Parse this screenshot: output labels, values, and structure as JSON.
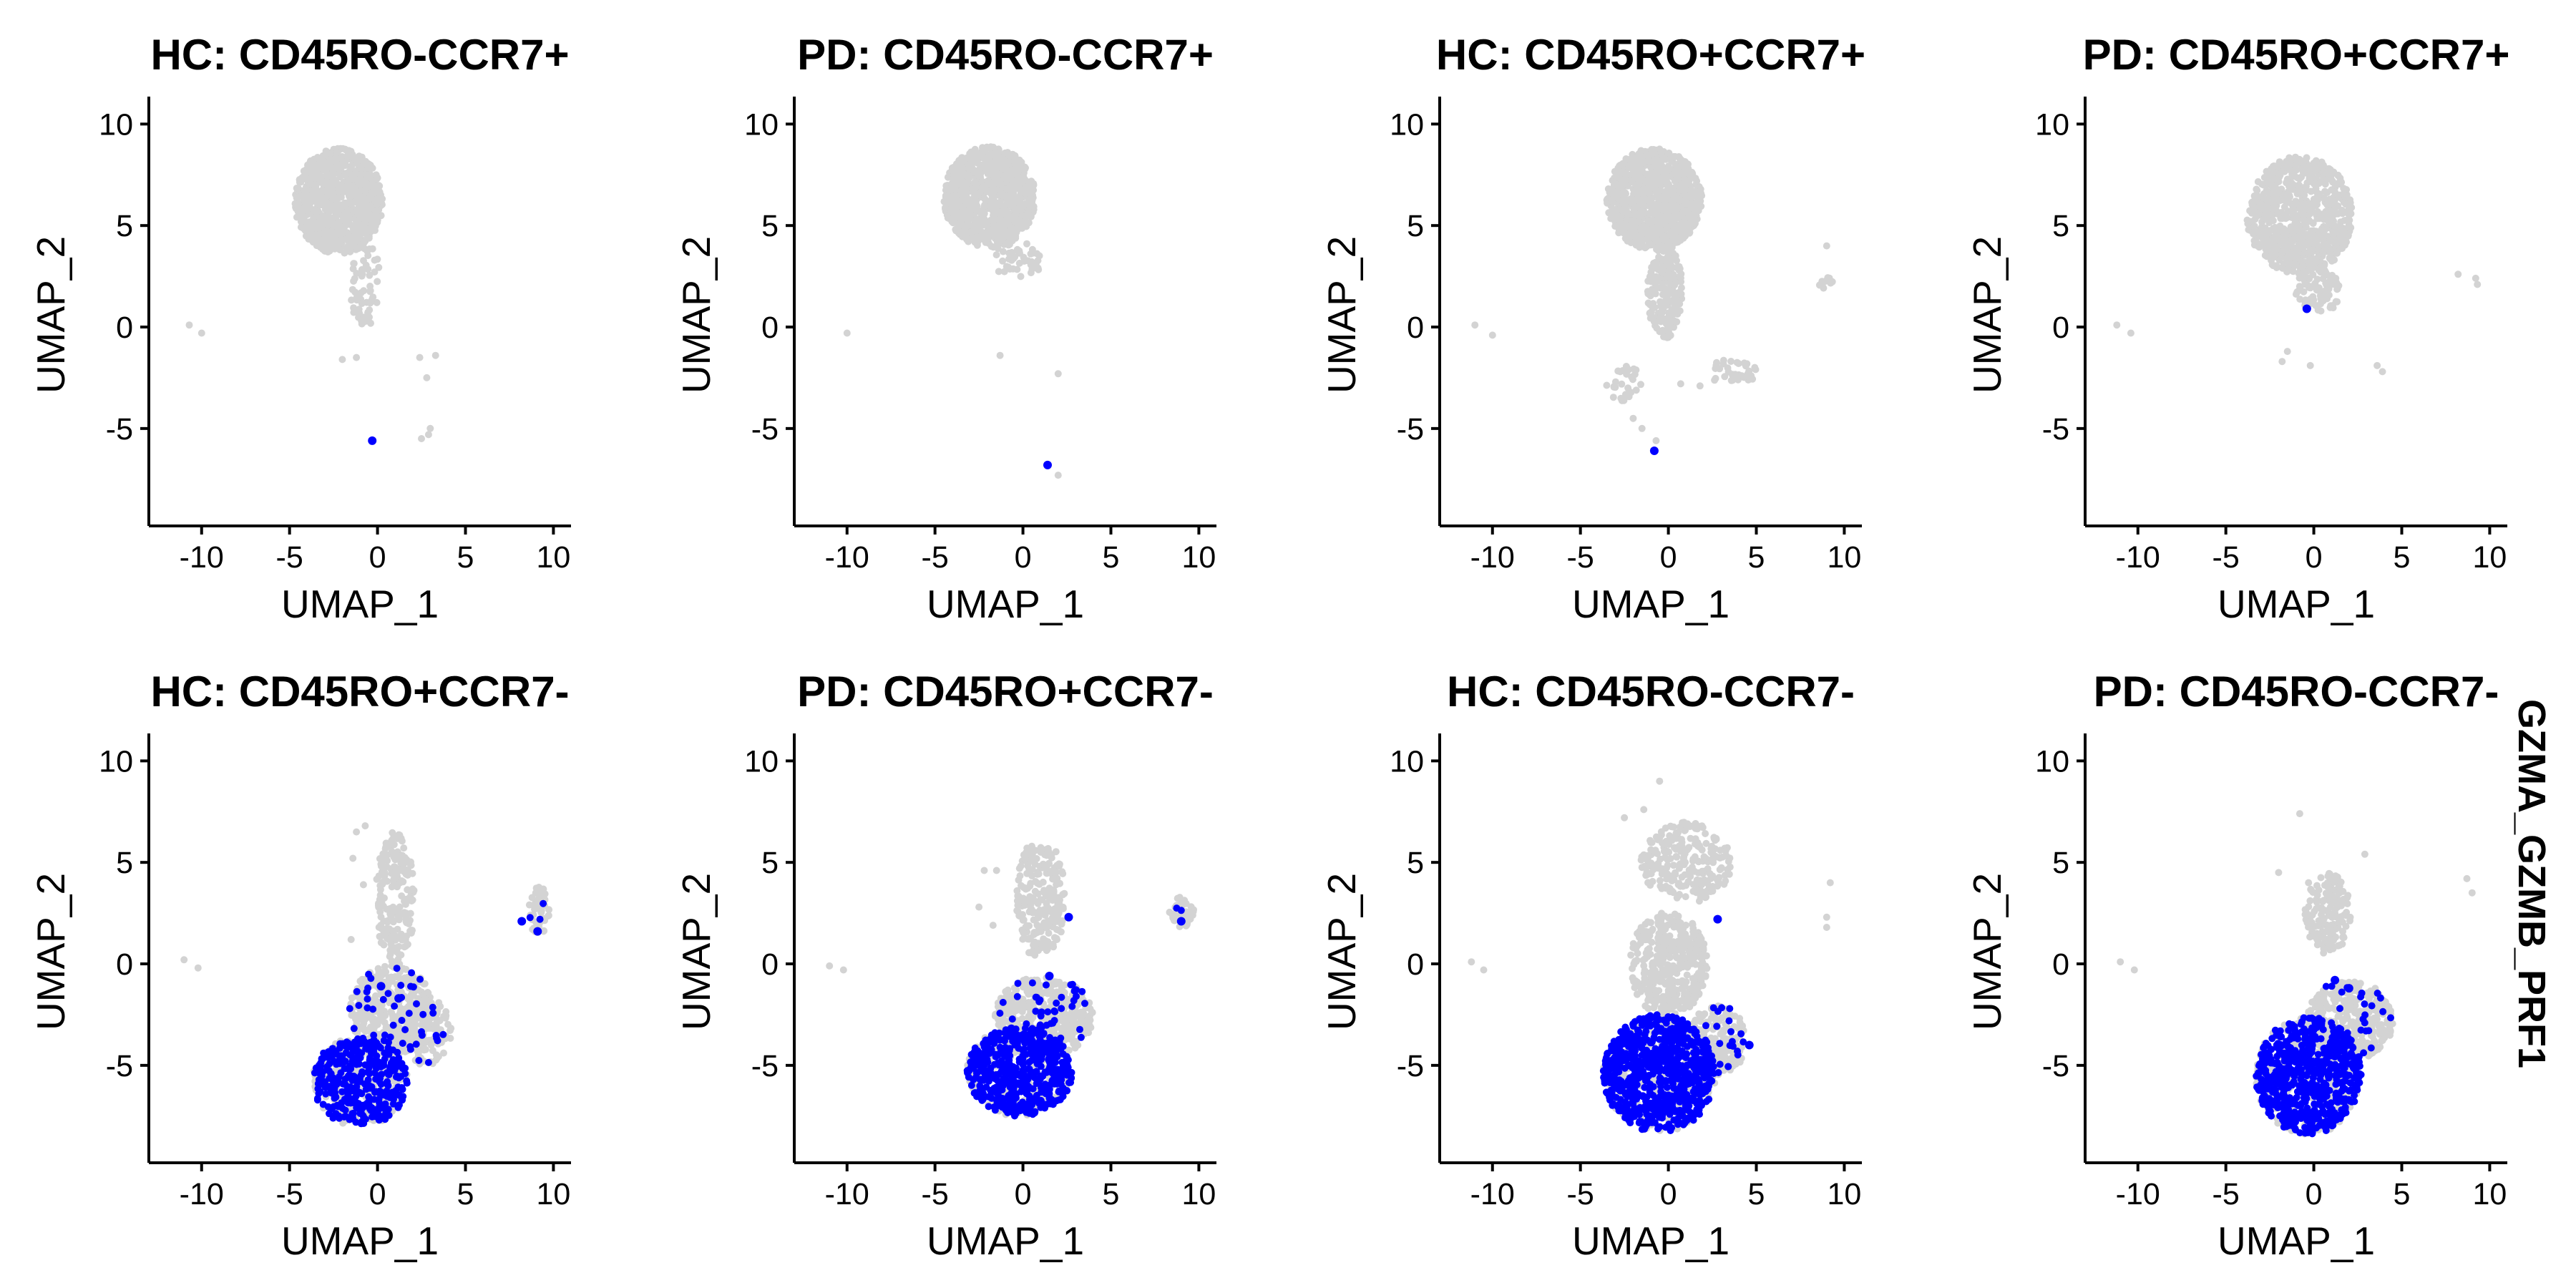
{
  "colors": {
    "negative": "#d3d3d3",
    "positive": "#0000ff"
  },
  "side_label": "GZMA_GZMB_PRF1",
  "chart_data": {
    "type": "scatter",
    "xlabel": "UMAP_1",
    "ylabel": "UMAP_2",
    "xlim": [
      -13,
      11
    ],
    "ylim": [
      -9.8,
      11
    ],
    "xticks": [
      -10,
      -5,
      0,
      5,
      10
    ],
    "yticks": [
      -5,
      0,
      5,
      10
    ],
    "legend": "none",
    "panels": [
      {
        "title": "HC: CD45RO-CCR7+",
        "clusters": [
          {
            "cx": -2.2,
            "cy": 6.2,
            "rx": 2.5,
            "ry": 2.6,
            "n": 900,
            "pos": 0
          },
          {
            "cx": -0.7,
            "cy": 2.2,
            "rx": 0.9,
            "ry": 2.2,
            "n": 60,
            "pos": 0
          }
        ],
        "outliers_bg": [
          [
            -10.7,
            0.1
          ],
          [
            -10.0,
            -0.3
          ],
          [
            -1.2,
            -1.5
          ],
          [
            -2.0,
            -1.6
          ],
          [
            2.4,
            -1.5
          ],
          [
            3.3,
            -1.4
          ],
          [
            2.8,
            -2.5
          ],
          [
            2.9,
            -5.3
          ],
          [
            2.5,
            -5.5
          ],
          [
            3.0,
            -5.0
          ]
        ],
        "outliers_pos": [
          [
            -0.3,
            -5.6
          ]
        ]
      },
      {
        "title": "PD: CD45RO-CCR7+",
        "clusters": [
          {
            "cx": -1.9,
            "cy": 6.4,
            "rx": 2.6,
            "ry": 2.5,
            "n": 850,
            "pos": 0
          },
          {
            "cx": -0.3,
            "cy": 3.3,
            "rx": 1.6,
            "ry": 0.9,
            "n": 45,
            "pos": 0
          }
        ],
        "outliers_bg": [
          [
            -10.0,
            -0.3
          ],
          [
            -1.3,
            -1.4
          ],
          [
            2.0,
            -2.3
          ],
          [
            2.0,
            -7.3
          ]
        ],
        "outliers_pos": [
          [
            1.4,
            -6.8
          ]
        ]
      },
      {
        "title": "HC: CD45RO+CCR7+",
        "clusters": [
          {
            "cx": -0.8,
            "cy": 6.3,
            "rx": 2.7,
            "ry": 2.5,
            "n": 900,
            "pos": 0
          },
          {
            "cx": -0.2,
            "cy": 1.8,
            "rx": 1.0,
            "ry": 2.4,
            "n": 200,
            "pos": 0
          },
          {
            "cx": 3.6,
            "cy": -2.2,
            "rx": 1.5,
            "ry": 0.6,
            "n": 35,
            "pos": 0
          },
          {
            "cx": -2.5,
            "cy": -2.8,
            "rx": 1.2,
            "ry": 0.9,
            "n": 30,
            "pos": 0
          },
          {
            "cx": 8.9,
            "cy": 2.2,
            "rx": 0.6,
            "ry": 0.3,
            "n": 10,
            "pos": 0
          }
        ],
        "outliers_bg": [
          [
            -11.0,
            0.1
          ],
          [
            -10.0,
            -0.4
          ],
          [
            9.0,
            4.0
          ],
          [
            -2.0,
            -4.5
          ],
          [
            -1.5,
            -5.0
          ],
          [
            -0.7,
            -5.6
          ],
          [
            0.7,
            -2.8
          ],
          [
            1.8,
            -2.9
          ]
        ],
        "outliers_pos": [
          [
            -0.8,
            -6.1
          ]
        ]
      },
      {
        "title": "PD: CD45RO+CCR7+",
        "clusters": [
          {
            "cx": -0.8,
            "cy": 5.5,
            "rx": 3.0,
            "ry": 2.9,
            "n": 800,
            "pos": 0
          },
          {
            "cx": 0.2,
            "cy": 1.8,
            "rx": 1.3,
            "ry": 1.2,
            "n": 80,
            "pos": 0
          }
        ],
        "outliers_bg": [
          [
            -11.2,
            0.1
          ],
          [
            -10.4,
            -0.3
          ],
          [
            -1.5,
            -1.2
          ],
          [
            -1.8,
            -1.7
          ],
          [
            -0.2,
            -1.9
          ],
          [
            3.6,
            -1.9
          ],
          [
            3.9,
            -2.2
          ],
          [
            8.2,
            2.6
          ],
          [
            9.2,
            2.4
          ],
          [
            9.3,
            2.1
          ]
        ],
        "outliers_pos": [
          [
            -0.4,
            0.9
          ]
        ]
      },
      {
        "title": "HC: CD45RO+CCR7-",
        "clusters": [
          {
            "cx": 1.0,
            "cy": 3.2,
            "rx": 1.1,
            "ry": 3.3,
            "n": 200,
            "pos": 0.0
          },
          {
            "cx": 0.8,
            "cy": -2.3,
            "rx": 2.4,
            "ry": 2.2,
            "n": 400,
            "pos": 0.08
          },
          {
            "cx": -1.0,
            "cy": -5.8,
            "rx": 2.7,
            "ry": 2.2,
            "n": 600,
            "pos": 0.55
          },
          {
            "cx": 2.7,
            "cy": -3.3,
            "rx": 1.5,
            "ry": 1.7,
            "n": 150,
            "pos": 0.05
          },
          {
            "cx": 9.2,
            "cy": 2.6,
            "rx": 0.6,
            "ry": 1.2,
            "n": 50,
            "pos": 0.05
          }
        ],
        "outliers_bg": [
          [
            -11.0,
            0.2
          ],
          [
            -10.2,
            -0.2
          ],
          [
            -1.2,
            6.5
          ],
          [
            -0.7,
            6.8
          ],
          [
            -1.4,
            5.2
          ],
          [
            -0.8,
            3.9
          ],
          [
            -1.5,
            1.2
          ]
        ],
        "outliers_pos": [
          [
            8.2,
            2.1
          ],
          [
            9.1,
            1.6
          ],
          [
            1.2,
            -1.7
          ],
          [
            0.2,
            -1.1
          ]
        ]
      },
      {
        "title": "PD: CD45RO+CCR7-",
        "clusters": [
          {
            "cx": 1.0,
            "cy": 3.2,
            "rx": 1.4,
            "ry": 3.0,
            "n": 250,
            "pos": 0.0
          },
          {
            "cx": 1.2,
            "cy": -2.6,
            "rx": 2.8,
            "ry": 2.0,
            "n": 500,
            "pos": 0.12
          },
          {
            "cx": -0.2,
            "cy": -5.3,
            "rx": 3.0,
            "ry": 2.2,
            "n": 700,
            "pos": 0.65
          },
          {
            "cx": 9.0,
            "cy": 2.6,
            "rx": 0.7,
            "ry": 0.8,
            "n": 45,
            "pos": 0.04
          }
        ],
        "outliers_bg": [
          [
            -11.0,
            -0.1
          ],
          [
            -10.2,
            -0.3
          ],
          [
            -1.5,
            4.6
          ],
          [
            -2.2,
            4.6
          ],
          [
            -2.5,
            2.8
          ],
          [
            -1.7,
            1.9
          ]
        ],
        "outliers_pos": [
          [
            2.6,
            2.3
          ],
          [
            1.5,
            -0.6
          ],
          [
            9.0,
            2.1
          ]
        ]
      },
      {
        "title": "HC: CD45RO-CCR7-",
        "clusters": [
          {
            "cx": 1.0,
            "cy": 5.0,
            "rx": 2.6,
            "ry": 2.0,
            "n": 250,
            "pos": 0.0
          },
          {
            "cx": 0.0,
            "cy": 0.0,
            "rx": 2.2,
            "ry": 2.6,
            "n": 400,
            "pos": 0.0
          },
          {
            "cx": -0.5,
            "cy": -5.4,
            "rx": 3.2,
            "ry": 2.9,
            "n": 1000,
            "pos": 0.7
          },
          {
            "cx": 2.8,
            "cy": -3.8,
            "rx": 1.6,
            "ry": 1.8,
            "n": 200,
            "pos": 0.1
          }
        ],
        "outliers_bg": [
          [
            -11.2,
            0.1
          ],
          [
            -10.5,
            -0.3
          ],
          [
            9.2,
            4.0
          ],
          [
            9.0,
            2.3
          ],
          [
            9.0,
            1.8
          ],
          [
            -2.5,
            7.2
          ],
          [
            -1.4,
            7.6
          ],
          [
            -0.5,
            9.0
          ]
        ],
        "outliers_pos": [
          [
            2.8,
            2.2
          ],
          [
            4.6,
            -4.0
          ]
        ]
      },
      {
        "title": "PD: CD45RO-CCR7-",
        "clusters": [
          {
            "cx": 0.8,
            "cy": 2.5,
            "rx": 1.3,
            "ry": 2.0,
            "n": 150,
            "pos": 0.0
          },
          {
            "cx": 2.0,
            "cy": -2.8,
            "rx": 2.5,
            "ry": 2.0,
            "n": 350,
            "pos": 0.08
          },
          {
            "cx": -0.3,
            "cy": -5.5,
            "rx": 3.0,
            "ry": 2.9,
            "n": 900,
            "pos": 0.68
          }
        ],
        "outliers_bg": [
          [
            -11.0,
            0.1
          ],
          [
            -10.2,
            -0.3
          ],
          [
            -0.8,
            7.4
          ],
          [
            -2.0,
            4.5
          ],
          [
            -0.3,
            4.0
          ],
          [
            2.9,
            5.4
          ],
          [
            8.7,
            4.2
          ],
          [
            9.0,
            3.5
          ]
        ],
        "outliers_pos": [
          [
            1.2,
            -0.8
          ],
          [
            2.0,
            -1.2
          ]
        ]
      }
    ]
  }
}
